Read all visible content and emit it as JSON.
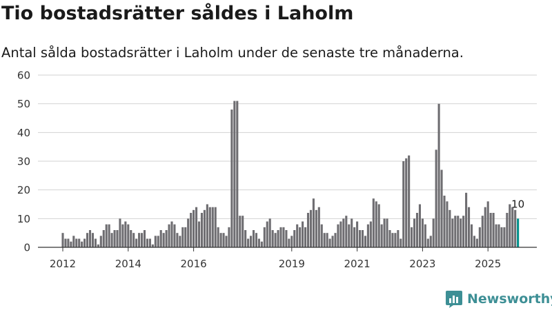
{
  "title": "Tio bostadsrätter såldes i Laholm",
  "subtitle": "Antal sålda bostadsrätter i Laholm under de senaste tre månaderna.",
  "brand": {
    "name": "Newsworthy",
    "icon": "newsworthy-logo-icon",
    "color": "#3d8f95"
  },
  "chart_data": {
    "type": "bar",
    "title": "Tio bostadsrätter såldes i Laholm",
    "subtitle": "Antal sålda bostadsrätter i Laholm under de senaste tre månaderna.",
    "xlabel": "",
    "ylabel": "",
    "ylim": [
      0,
      60
    ],
    "yticks": [
      0,
      10,
      20,
      30,
      40,
      50,
      60
    ],
    "xtick_labels": [
      "2012",
      "2014",
      "2016",
      "2019",
      "2021",
      "2023",
      "2025"
    ],
    "xtick_positions": [
      0,
      24,
      48,
      84,
      108,
      132,
      156
    ],
    "grid": true,
    "bar_color": "#6e6d71",
    "highlight_color": "#00908a",
    "highlight_label": "10",
    "start": "2012-01",
    "frequency": "monthly (rolling three-month total)",
    "values": [
      5,
      3,
      3,
      2,
      4,
      3,
      3,
      2,
      3,
      5,
      6,
      5,
      3,
      1,
      4,
      6,
      8,
      8,
      5,
      6,
      6,
      10,
      8,
      9,
      8,
      6,
      5,
      3,
      5,
      5,
      6,
      3,
      3,
      1,
      4,
      4,
      6,
      5,
      6,
      8,
      9,
      8,
      5,
      4,
      7,
      7,
      10,
      12,
      13,
      14,
      9,
      12,
      13,
      15,
      14,
      14,
      14,
      7,
      5,
      5,
      4,
      7,
      48,
      51,
      51,
      11,
      11,
      6,
      3,
      4,
      6,
      5,
      3,
      2,
      7,
      9,
      10,
      6,
      5,
      6,
      7,
      7,
      6,
      3,
      4,
      6,
      8,
      7,
      9,
      7,
      12,
      13,
      17,
      13,
      14,
      8,
      5,
      5,
      3,
      4,
      5,
      8,
      9,
      10,
      11,
      8,
      10,
      7,
      9,
      6,
      6,
      4,
      8,
      9,
      17,
      16,
      15,
      8,
      10,
      10,
      6,
      5,
      5,
      6,
      3,
      30,
      31,
      32,
      7,
      10,
      12,
      15,
      10,
      8,
      3,
      4,
      10,
      34,
      50,
      27,
      18,
      16,
      13,
      10,
      11,
      11,
      10,
      11,
      19,
      14,
      8,
      4,
      3,
      7,
      11,
      14,
      16,
      12,
      12,
      8,
      8,
      7,
      7,
      12,
      15,
      14,
      13,
      10
    ]
  }
}
